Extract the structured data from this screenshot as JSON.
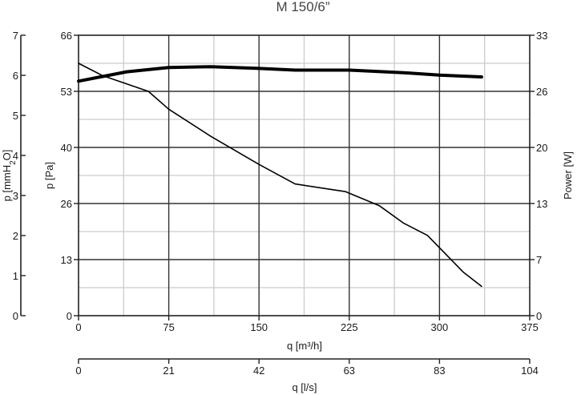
{
  "chart_data": {
    "type": "line",
    "title": "M 150/6”",
    "xlabel": "q [m³/h]",
    "xlim": [
      0,
      375
    ],
    "xticks": [
      "0",
      "75",
      "150",
      "225",
      "300",
      "375"
    ],
    "x2label": "q [l/s]",
    "x2ticks": [
      "0",
      "21",
      "42",
      "63",
      "83",
      "104"
    ],
    "ylabel": "p [Pa]",
    "ylim": [
      0,
      66
    ],
    "yticks": [
      "0",
      "13",
      "26",
      "40",
      "53",
      "66"
    ],
    "y_outer_label": "p [mmH2O]",
    "y_outer_ticks": [
      "0",
      "1",
      "2",
      "3",
      "4",
      "5",
      "6",
      "7"
    ],
    "y2label": "Power [W]",
    "y2lim": [
      0,
      33
    ],
    "y2ticks": [
      "0",
      "7",
      "13",
      "20",
      "26",
      "33"
    ],
    "grid": true,
    "series": [
      {
        "axis": "pressure",
        "x": [
          0,
          20,
          58,
          75,
          110,
          150,
          180,
          222,
          250,
          270,
          290,
          320,
          335
        ],
        "y": [
          59.4,
          56.5,
          52.8,
          48.6,
          42.2,
          35.6,
          31.0,
          29.2,
          25.9,
          21.8,
          18.9,
          10.2,
          6.9
        ]
      },
      {
        "axis": "power",
        "x": [
          0,
          40,
          75,
          110,
          150,
          180,
          225,
          270,
          300,
          335
        ],
        "y": [
          27.6,
          28.7,
          29.2,
          29.3,
          29.1,
          28.9,
          28.9,
          28.6,
          28.3,
          28.1
        ]
      }
    ]
  }
}
